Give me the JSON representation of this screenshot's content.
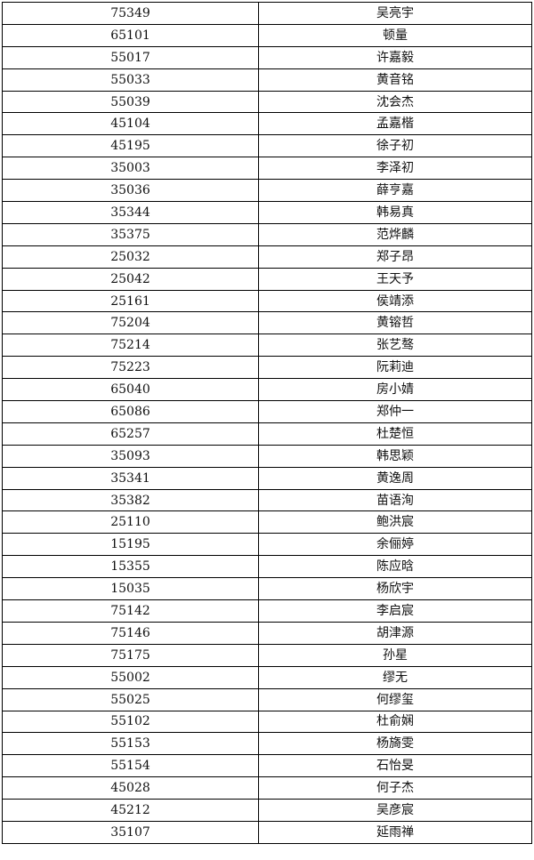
{
  "rows": [
    {
      "id": "75349",
      "name": "吴亮宇"
    },
    {
      "id": "65101",
      "name": "顿量"
    },
    {
      "id": "55017",
      "name": "许嘉毅"
    },
    {
      "id": "55033",
      "name": "黄音铭"
    },
    {
      "id": "55039",
      "name": "沈会杰"
    },
    {
      "id": "45104",
      "name": "孟嘉楷"
    },
    {
      "id": "45195",
      "name": "徐子初"
    },
    {
      "id": "35003",
      "name": "李泽初"
    },
    {
      "id": "35036",
      "name": "薛亨嘉"
    },
    {
      "id": "35344",
      "name": "韩易真"
    },
    {
      "id": "35375",
      "name": "范烨麟"
    },
    {
      "id": "25032",
      "name": "郑子昂"
    },
    {
      "id": "25042",
      "name": "王天予"
    },
    {
      "id": "25161",
      "name": "侯靖添"
    },
    {
      "id": "75204",
      "name": "黄镕哲"
    },
    {
      "id": "75214",
      "name": "张艺骜"
    },
    {
      "id": "75223",
      "name": "阮莉迪"
    },
    {
      "id": "65040",
      "name": "房小婧"
    },
    {
      "id": "65086",
      "name": "郑仲一"
    },
    {
      "id": "65257",
      "name": "杜楚恒"
    },
    {
      "id": "35093",
      "name": "韩思颖"
    },
    {
      "id": "35341",
      "name": "黄逸周"
    },
    {
      "id": "35382",
      "name": "苗语洵"
    },
    {
      "id": "25110",
      "name": "鲍洪宸"
    },
    {
      "id": "15195",
      "name": "余俪婷"
    },
    {
      "id": "15355",
      "name": "陈应晗"
    },
    {
      "id": "15035",
      "name": "杨欣宇"
    },
    {
      "id": "75142",
      "name": "李启宸"
    },
    {
      "id": "75146",
      "name": "胡津源"
    },
    {
      "id": "75175",
      "name": "孙星"
    },
    {
      "id": "55002",
      "name": "缪无"
    },
    {
      "id": "55025",
      "name": "何缪玺"
    },
    {
      "id": "55102",
      "name": "杜俞娴"
    },
    {
      "id": "55153",
      "name": "杨旖雯"
    },
    {
      "id": "55154",
      "name": "石怡旻"
    },
    {
      "id": "45028",
      "name": "何子杰"
    },
    {
      "id": "45212",
      "name": "吴彦宸"
    },
    {
      "id": "35107",
      "name": "延雨禅"
    }
  ]
}
